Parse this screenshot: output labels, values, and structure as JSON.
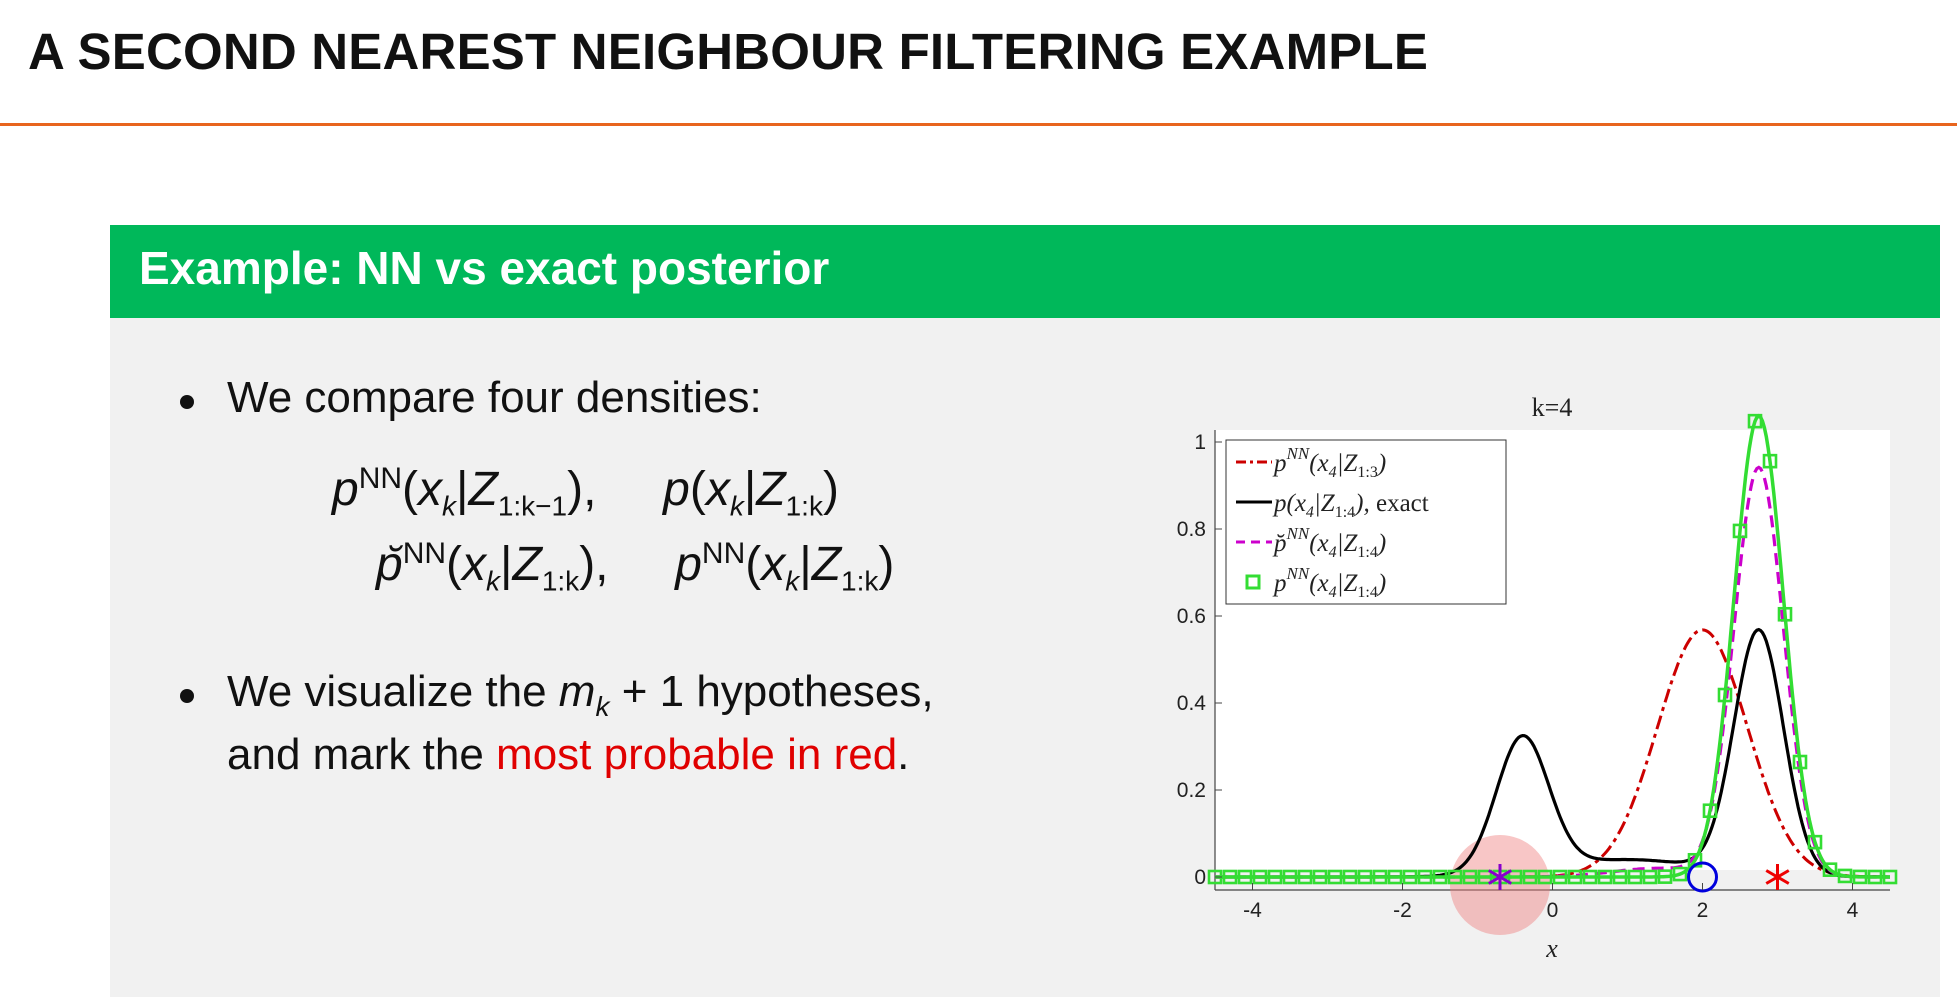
{
  "slide_title": "A SECOND NEAREST NEIGHBOUR FILTERING EXAMPLE",
  "block_title": "Example: NN vs exact posterior",
  "bullets": {
    "b1": "We compare four densities:",
    "b2_pre": "We visualize the",
    "b2_math": "m",
    "b2_math_sub": "k",
    "b2_plus": "+ 1",
    "b2_post": "hypotheses,",
    "b3_pre": "and mark the",
    "b3_red": "most probable in red",
    "b3_post": "."
  },
  "formulas": {
    "f1": {
      "sup": "NN",
      "sub": "1:k−1"
    },
    "f2": {
      "sub": "1:k"
    },
    "f3": {
      "sup": "NN",
      "sub": "1:k"
    },
    "f4": {
      "sup": "NN",
      "sub": "1:k"
    },
    "p": "p",
    "x": "x",
    "k": "k",
    "Z": "Z",
    "sep": ","
  },
  "colors": {
    "accent_orange": "#e8651e",
    "block_green": "#00b85a",
    "red_text": "#e00000",
    "nn_pred": "#cc0000",
    "exact": "#000000",
    "nn_breve": "#cc00cc",
    "nn_update": "#33dd33",
    "hyp_circle": "#0000dd",
    "hyp_star_red": "#ee0000",
    "hyp_star_purple": "#8800cc"
  },
  "chart_data": {
    "type": "line",
    "title": "k=4",
    "xlabel": "x",
    "ylabel": "",
    "xlim": [
      -4.5,
      4.5
    ],
    "ylim": [
      -0.05,
      1.1
    ],
    "xticks": [
      "-4",
      "-2",
      "0",
      "2",
      "4"
    ],
    "yticks": [
      "0",
      "0.2",
      "0.4",
      "0.6",
      "0.8",
      "1"
    ],
    "legend_position": "top-left",
    "legend": [
      {
        "label": "p^{NN}(x_4|Z_{1:3})",
        "style": "dash-dot",
        "color": "#cc0000"
      },
      {
        "label": "p(x_4|Z_{1:4}), exact",
        "style": "solid",
        "color": "#000000"
      },
      {
        "label": "p̆^{NN}(x_4|Z_{1:4})",
        "style": "dashed",
        "color": "#cc00cc"
      },
      {
        "label": "p^{NN}(x_4|Z_{1:4})",
        "style": "solid-square-markers",
        "color": "#33dd33"
      }
    ],
    "series": [
      {
        "name": "p^{NN}(x_4|Z_{1:3})",
        "components": [
          {
            "w": 0.568,
            "mu": 2.0,
            "sigma": 0.6
          }
        ]
      },
      {
        "name": "p(x_4|Z_{1:4}), exact",
        "components": [
          {
            "w": 0.31,
            "mu": -0.4,
            "sigma": 0.35
          },
          {
            "w": 0.56,
            "mu": 2.75,
            "sigma": 0.33
          },
          {
            "w": 0.04,
            "mu": 1.0,
            "sigma": 1.0
          }
        ]
      },
      {
        "name": "p̆^{NN}(x_4|Z_{1:4})",
        "components": [
          {
            "w": 0.94,
            "mu": 2.75,
            "sigma": 0.33
          },
          {
            "w": 0.02,
            "mu": 1.4,
            "sigma": 0.6
          }
        ]
      },
      {
        "name": "p^{NN}(x_4|Z_{1:4})",
        "components": [
          {
            "w": 1.06,
            "mu": 2.75,
            "sigma": 0.33
          }
        ]
      }
    ],
    "hypotheses": [
      {
        "x": -0.7,
        "marker": "star",
        "color": "#8800cc"
      },
      {
        "x": 2.0,
        "marker": "circle",
        "color": "#0000dd"
      },
      {
        "x": 3.0,
        "marker": "star",
        "color": "#ee0000"
      }
    ],
    "highlight_x": -0.7
  }
}
